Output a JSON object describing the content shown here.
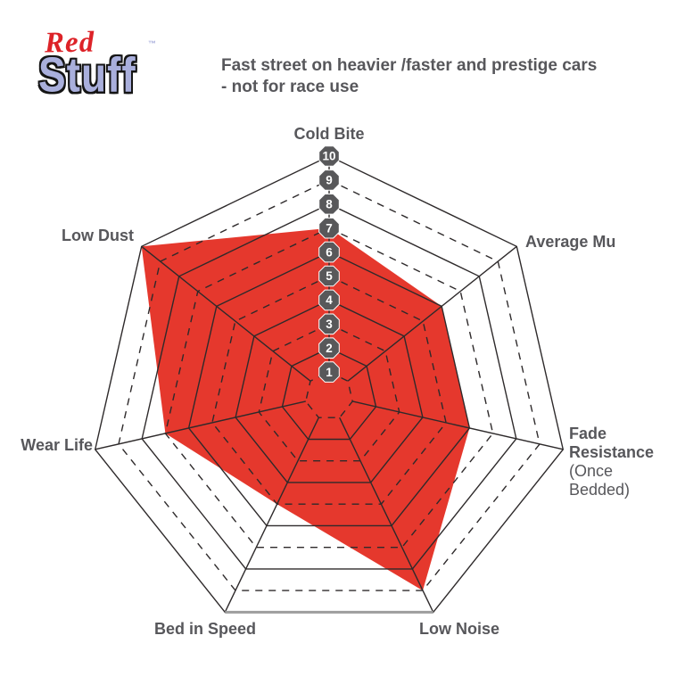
{
  "logo": {
    "red": "Red",
    "stuff": "Stuff",
    "trademark": "™"
  },
  "title": "Fast street on heavier /faster and prestige cars - not for race use",
  "chart_data": {
    "type": "radar",
    "categories": [
      "Cold Bite",
      "Average Mu",
      "Fade Resistance",
      "Low Noise",
      "Bed in Speed",
      "Wear Life",
      "Low Dust"
    ],
    "sublabels": {
      "2": "(Once Bedded)"
    },
    "values": [
      7,
      6,
      6,
      9,
      5,
      7,
      10
    ],
    "scale_min": 1,
    "scale_max": 10,
    "tick_labels": [
      "1",
      "2",
      "3",
      "4",
      "5",
      "6",
      "7",
      "8",
      "9",
      "10"
    ],
    "tick_axis": "Cold Bite",
    "fill_color": "#e5382d",
    "grid_color": "#2e2a2b",
    "outer_bottom_edge_color": "#9d9d9d",
    "badge_color": "#58585a",
    "badge_text_color": "#ffffff",
    "label_color": "#57575b",
    "layout": {
      "rings": 10,
      "grid_style": "heptagon web, odd rings dashed, even rings solid",
      "legend": "none",
      "fill_under_grid": true
    }
  }
}
